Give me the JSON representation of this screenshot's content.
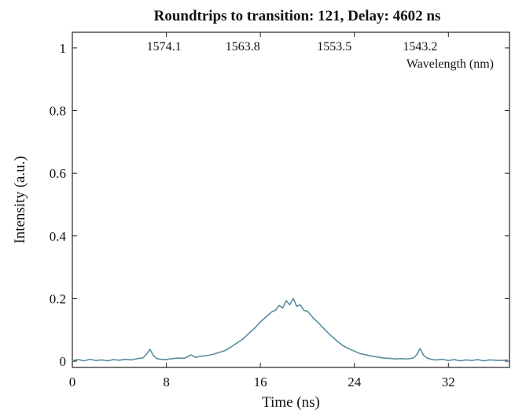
{
  "chart_data": {
    "type": "line",
    "title": "Roundtrips to transition: 121, Delay: 4602 ns",
    "xlabel": "Time (ns)",
    "ylabel": "Intensity (a.u.)",
    "xlim": [
      0,
      37.2
    ],
    "ylim": [
      -0.02,
      1.05
    ],
    "x_ticks": [
      0,
      8,
      16,
      24,
      32
    ],
    "x_tick_labels": [
      "0",
      "8",
      "16",
      "24",
      "32"
    ],
    "y_ticks": [
      0,
      0.2,
      0.4,
      0.6,
      0.8,
      1
    ],
    "y_tick_labels": [
      "0",
      "0.2",
      "0.4",
      "0.6",
      "0.8",
      "1"
    ],
    "top_axis": {
      "label": "Wavelength (nm)",
      "ticks_time": [
        7.8,
        14.5,
        22.3,
        29.6
      ],
      "tick_labels": [
        "1574.1",
        "1563.8",
        "1553.5",
        "1543.2"
      ]
    },
    "grid": false,
    "line_color": "#5b8ea3",
    "series": [
      {
        "x": [
          0,
          0.5,
          1,
          1.5,
          2,
          2.5,
          3,
          3.5,
          4,
          4.5,
          5,
          5.5,
          6,
          6.3,
          6.6,
          6.9,
          7.2,
          7.6,
          8,
          8.5,
          9,
          9.5,
          9.8,
          10.1,
          10.5,
          11,
          11.5,
          12,
          12.5,
          13,
          13.5,
          14,
          14.5,
          15,
          15.5,
          16,
          16.5,
          17,
          17.3,
          17.6,
          17.9,
          18.2,
          18.5,
          18.8,
          19.1,
          19.4,
          19.7,
          20,
          20.5,
          21,
          21.5,
          22,
          22.5,
          23,
          23.5,
          24,
          24.5,
          25,
          25.5,
          26,
          26.5,
          27,
          27.5,
          28,
          28.5,
          29,
          29.3,
          29.6,
          29.9,
          30.2,
          30.6,
          31,
          31.5,
          32,
          32.5,
          33,
          33.5,
          34,
          34.5,
          35,
          35.5,
          36,
          36.5,
          37
        ],
        "y": [
          0.002,
          0.005,
          0.001,
          0.006,
          0.002,
          0.004,
          0.001,
          0.005,
          0.003,
          0.006,
          0.004,
          0.008,
          0.01,
          0.022,
          0.038,
          0.018,
          0.008,
          0.006,
          0.005,
          0.008,
          0.01,
          0.009,
          0.014,
          0.02,
          0.012,
          0.016,
          0.018,
          0.022,
          0.028,
          0.034,
          0.045,
          0.058,
          0.07,
          0.088,
          0.105,
          0.125,
          0.142,
          0.158,
          0.163,
          0.178,
          0.17,
          0.193,
          0.18,
          0.2,
          0.175,
          0.18,
          0.162,
          0.16,
          0.138,
          0.12,
          0.1,
          0.082,
          0.065,
          0.05,
          0.04,
          0.032,
          0.024,
          0.02,
          0.016,
          0.013,
          0.01,
          0.009,
          0.007,
          0.008,
          0.007,
          0.01,
          0.02,
          0.04,
          0.018,
          0.01,
          0.005,
          0.004,
          0.006,
          0.002,
          0.005,
          0.001,
          0.004,
          0.002,
          0.005,
          0.001,
          0.004,
          0.003,
          0.002,
          0.004
        ]
      }
    ]
  }
}
